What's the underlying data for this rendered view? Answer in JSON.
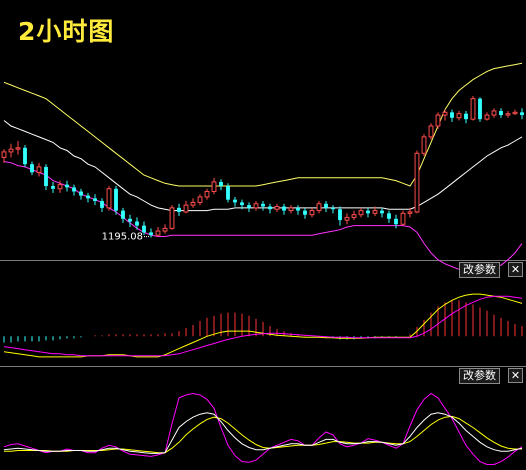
{
  "title": "2小时图",
  "chart_data": {
    "type": "candlestick",
    "colors": {
      "background": "#000000",
      "up": "#ff4d4d",
      "down": "#33ffff",
      "boll_mid": "#ffffff",
      "boll_upper": "#ffff66",
      "boll_lower": "#ff33ff",
      "k_line": "#ffffff",
      "d_line": "#ffff00",
      "j_line": "#ff00ff",
      "macd_pos": "#ff3333",
      "macd_neg": "#33ffff"
    },
    "price_axis": {
      "min": 1188,
      "max": 1262
    },
    "annotations": [
      {
        "label": "1195.08",
        "index": 21,
        "value": 1195.08
      }
    ],
    "candles": [
      [
        1224.5,
        1226.5,
        1222.5,
        1227.5
      ],
      [
        1226.5,
        1227.5,
        1224.5,
        1229.5
      ],
      [
        1227.5,
        1228.0,
        1225.5,
        1230.5
      ],
      [
        1228.0,
        1222.0,
        1221.0,
        1229.0
      ],
      [
        1222.0,
        1219.0,
        1218.0,
        1223.0
      ],
      [
        1219.0,
        1221.0,
        1217.5,
        1222.5
      ],
      [
        1221.0,
        1214.0,
        1212.5,
        1222.0
      ],
      [
        1214.0,
        1213.0,
        1211.5,
        1215.5
      ],
      [
        1213.0,
        1214.5,
        1211.5,
        1216.0
      ],
      [
        1214.5,
        1213.5,
        1212.0,
        1216.0
      ],
      [
        1213.5,
        1212.0,
        1210.5,
        1214.5
      ],
      [
        1212.0,
        1210.5,
        1209.0,
        1213.0
      ],
      [
        1210.5,
        1209.5,
        1208.0,
        1211.5
      ],
      [
        1209.5,
        1208.5,
        1207.0,
        1211.0
      ],
      [
        1208.5,
        1206.0,
        1204.5,
        1209.5
      ],
      [
        1206.0,
        1213.0,
        1205.0,
        1214.0
      ],
      [
        1213.0,
        1205.0,
        1203.5,
        1214.0
      ],
      [
        1205.0,
        1202.0,
        1200.5,
        1206.0
      ],
      [
        1202.0,
        1201.0,
        1199.0,
        1203.5
      ],
      [
        1201.0,
        1199.5,
        1198.0,
        1202.5
      ],
      [
        1199.5,
        1197.0,
        1196.0,
        1201.0
      ],
      [
        1197.0,
        1196.0,
        1195.08,
        1198.5
      ],
      [
        1196.0,
        1197.5,
        1195.5,
        1199.0
      ],
      [
        1197.5,
        1198.5,
        1196.5,
        1200.0
      ],
      [
        1198.5,
        1206.0,
        1198.0,
        1207.0
      ],
      [
        1206.0,
        1204.5,
        1203.0,
        1207.5
      ],
      [
        1204.5,
        1207.0,
        1204.0,
        1208.5
      ],
      [
        1207.0,
        1208.0,
        1206.0,
        1209.5
      ],
      [
        1208.0,
        1210.0,
        1207.0,
        1211.0
      ],
      [
        1210.0,
        1212.0,
        1209.0,
        1213.0
      ],
      [
        1212.0,
        1215.5,
        1211.0,
        1217.0
      ],
      [
        1215.5,
        1214.0,
        1212.5,
        1216.5
      ],
      [
        1214.0,
        1209.0,
        1208.0,
        1215.0
      ],
      [
        1209.0,
        1208.0,
        1206.5,
        1210.0
      ],
      [
        1208.0,
        1207.0,
        1205.5,
        1209.0
      ],
      [
        1207.0,
        1206.0,
        1204.5,
        1208.0
      ],
      [
        1206.0,
        1207.5,
        1205.0,
        1208.5
      ],
      [
        1207.5,
        1206.5,
        1205.0,
        1208.5
      ],
      [
        1206.5,
        1205.5,
        1204.0,
        1207.5
      ],
      [
        1205.5,
        1206.5,
        1204.5,
        1207.5
      ],
      [
        1206.5,
        1205.0,
        1203.5,
        1207.5
      ],
      [
        1205.0,
        1206.0,
        1204.0,
        1207.0
      ],
      [
        1206.0,
        1205.0,
        1203.5,
        1207.0
      ],
      [
        1205.0,
        1203.5,
        1202.0,
        1206.0
      ],
      [
        1203.5,
        1205.0,
        1202.5,
        1206.0
      ],
      [
        1205.0,
        1207.5,
        1204.0,
        1208.5
      ],
      [
        1207.5,
        1206.0,
        1204.5,
        1208.5
      ],
      [
        1206.0,
        1205.5,
        1204.0,
        1207.0
      ],
      [
        1205.5,
        1201.5,
        1199.5,
        1206.5
      ],
      [
        1201.5,
        1202.5,
        1200.0,
        1204.0
      ],
      [
        1202.5,
        1203.5,
        1201.5,
        1205.0
      ],
      [
        1203.5,
        1205.0,
        1202.5,
        1206.0
      ],
      [
        1205.0,
        1204.0,
        1202.5,
        1206.0
      ],
      [
        1204.0,
        1205.0,
        1203.0,
        1206.5
      ],
      [
        1205.0,
        1204.0,
        1202.5,
        1206.0
      ],
      [
        1204.0,
        1202.0,
        1200.5,
        1205.0
      ],
      [
        1202.0,
        1200.0,
        1198.5,
        1203.5
      ],
      [
        1200.0,
        1204.0,
        1199.5,
        1205.0
      ],
      [
        1204.0,
        1204.5,
        1202.5,
        1206.0
      ],
      [
        1204.5,
        1226.0,
        1204.0,
        1227.0
      ],
      [
        1226.0,
        1232.0,
        1225.0,
        1233.0
      ],
      [
        1232.0,
        1236.0,
        1231.0,
        1237.0
      ],
      [
        1236.0,
        1240.0,
        1235.0,
        1241.0
      ],
      [
        1240.0,
        1241.0,
        1238.0,
        1242.0
      ],
      [
        1241.0,
        1239.0,
        1237.5,
        1242.0
      ],
      [
        1239.0,
        1240.5,
        1238.0,
        1241.5
      ],
      [
        1240.5,
        1238.5,
        1237.0,
        1241.5
      ],
      [
        1238.5,
        1246.0,
        1238.0,
        1247.0
      ],
      [
        1246.0,
        1238.5,
        1237.5,
        1246.5
      ],
      [
        1238.5,
        1240.0,
        1238.0,
        1241.0
      ],
      [
        1240.0,
        1241.5,
        1239.0,
        1242.5
      ],
      [
        1241.5,
        1240.0,
        1239.0,
        1242.5
      ],
      [
        1240.0,
        1240.5,
        1239.0,
        1241.5
      ],
      [
        1240.5,
        1241.0,
        1240.0,
        1242.0
      ],
      [
        1241.0,
        1240.0,
        1238.5,
        1242.5
      ]
    ],
    "boll": {
      "upper": [
        1252,
        1251,
        1250,
        1249,
        1248,
        1247,
        1246,
        1244,
        1242,
        1240,
        1238,
        1236,
        1234,
        1232,
        1230,
        1228,
        1226,
        1224,
        1222,
        1220,
        1218,
        1217,
        1216,
        1215,
        1214.5,
        1214,
        1214,
        1214,
        1214,
        1214,
        1214,
        1214,
        1214,
        1214,
        1214,
        1214,
        1214,
        1214.5,
        1215,
        1215.5,
        1216,
        1216.5,
        1217,
        1217,
        1217,
        1217,
        1217,
        1217,
        1217,
        1217,
        1217,
        1217,
        1217,
        1217,
        1217,
        1216.5,
        1216,
        1215,
        1214,
        1218,
        1224,
        1230,
        1236,
        1242,
        1246,
        1249,
        1251,
        1253,
        1254.5,
        1256,
        1257,
        1257.5,
        1258,
        1258.5,
        1259
      ],
      "mid": [
        1238,
        1236,
        1235,
        1234,
        1233,
        1232,
        1231,
        1230,
        1228,
        1227,
        1225,
        1224,
        1222,
        1221,
        1219,
        1217,
        1215,
        1213,
        1211,
        1210,
        1208.5,
        1207,
        1206,
        1205.5,
        1205,
        1205,
        1205,
        1205,
        1205,
        1205,
        1205.5,
        1205.5,
        1205.5,
        1206,
        1206,
        1206,
        1206,
        1206,
        1206,
        1206,
        1206,
        1206,
        1206,
        1206,
        1206,
        1206,
        1206,
        1206,
        1206,
        1206,
        1206,
        1206,
        1206,
        1206,
        1206,
        1205.5,
        1205.5,
        1205.5,
        1205.5,
        1206.5,
        1208,
        1209.5,
        1211,
        1213,
        1215,
        1217,
        1219,
        1221,
        1223,
        1225,
        1226.5,
        1228,
        1229,
        1230.5,
        1232
      ],
      "lower": [
        1223,
        1222.5,
        1221.5,
        1221,
        1220,
        1219,
        1218,
        1216,
        1215,
        1214,
        1213,
        1211,
        1210,
        1209,
        1208,
        1206,
        1204.5,
        1202.5,
        1200.5,
        1198.5,
        1197,
        1196,
        1195.5,
        1195.5,
        1196,
        1196,
        1196,
        1196,
        1196,
        1196,
        1196,
        1196,
        1196,
        1196,
        1196,
        1196,
        1196,
        1196,
        1196,
        1196,
        1196,
        1196,
        1196,
        1196,
        1196,
        1196.5,
        1197,
        1197.5,
        1198,
        1199,
        1199.5,
        1199.5,
        1199.5,
        1199.5,
        1199.5,
        1199.5,
        1199.5,
        1199.5,
        1199,
        1197,
        1193,
        1189.5,
        1187,
        1185.5,
        1184.5,
        1183.5,
        1183,
        1183,
        1183,
        1183.5,
        1184,
        1185,
        1187,
        1189.5,
        1193
      ]
    },
    "macd": {
      "range": [
        -2.5,
        4.5
      ],
      "hist": [
        -0.6,
        -0.6,
        -0.5,
        -0.5,
        -0.5,
        -0.5,
        -0.4,
        -0.4,
        -0.3,
        -0.2,
        -0.2,
        -0.1,
        0,
        0.1,
        0.1,
        0.2,
        0.2,
        0.2,
        0.2,
        0.2,
        0.2,
        0.2,
        0.2,
        0.3,
        0.3,
        0.5,
        0.8,
        1.1,
        1.5,
        1.8,
        2.0,
        2.2,
        2.3,
        2.3,
        2.2,
        2.0,
        1.7,
        1.4,
        1.0,
        0.7,
        0.5,
        0.3,
        0.2,
        0.1,
        0.0,
        -0.1,
        -0.1,
        -0.2,
        -0.3,
        -0.3,
        -0.3,
        -0.2,
        -0.2,
        -0.2,
        -0.1,
        -0.1,
        -0.1,
        0,
        0.2,
        0.9,
        1.6,
        2.3,
        2.9,
        3.3,
        3.5,
        3.5,
        3.3,
        3.1,
        2.8,
        2.5,
        2.1,
        1.8,
        1.5,
        1.2,
        1.0
      ],
      "dif": [
        -1.5,
        -1.6,
        -1.7,
        -1.8,
        -1.9,
        -2.0,
        -2.0,
        -2.0,
        -2.0,
        -2.0,
        -2.0,
        -2.0,
        -1.9,
        -1.9,
        -1.9,
        -1.8,
        -1.8,
        -1.8,
        -1.9,
        -2.0,
        -2.0,
        -2.0,
        -2.0,
        -1.8,
        -1.5,
        -1.2,
        -0.9,
        -0.6,
        -0.3,
        0,
        0.2,
        0.4,
        0.5,
        0.5,
        0.5,
        0.5,
        0.4,
        0.3,
        0.2,
        0.1,
        0.05,
        0,
        -0.05,
        -0.1,
        -0.1,
        -0.1,
        -0.15,
        -0.15,
        -0.2,
        -0.2,
        -0.2,
        -0.2,
        -0.15,
        -0.1,
        -0.1,
        -0.1,
        -0.1,
        -0.1,
        -0.1,
        0.5,
        1.2,
        1.9,
        2.6,
        3.1,
        3.5,
        3.8,
        4.0,
        4.1,
        4.1,
        4.0,
        3.9,
        3.8,
        3.6,
        3.4,
        3.2
      ],
      "dea": [
        -1.0,
        -1.1,
        -1.2,
        -1.3,
        -1.4,
        -1.5,
        -1.6,
        -1.7,
        -1.7,
        -1.8,
        -1.8,
        -1.9,
        -1.9,
        -1.9,
        -1.9,
        -1.9,
        -1.9,
        -1.9,
        -1.9,
        -1.9,
        -1.9,
        -1.9,
        -1.9,
        -1.9,
        -1.8,
        -1.7,
        -1.5,
        -1.3,
        -1.1,
        -0.9,
        -0.7,
        -0.5,
        -0.3,
        -0.15,
        0,
        0.1,
        0.2,
        0.25,
        0.3,
        0.3,
        0.25,
        0.2,
        0.15,
        0.1,
        0.05,
        0,
        -0.05,
        -0.1,
        -0.1,
        -0.1,
        -0.15,
        -0.15,
        -0.15,
        -0.15,
        -0.15,
        -0.15,
        -0.15,
        -0.15,
        -0.15,
        0,
        0.3,
        0.7,
        1.2,
        1.7,
        2.2,
        2.6,
        3.0,
        3.3,
        3.6,
        3.8,
        3.9,
        3.9,
        3.9,
        3.8,
        3.7
      ]
    },
    "kdj": {
      "range": [
        0,
        100
      ],
      "k": [
        22,
        23,
        24,
        23,
        22,
        21,
        20,
        20,
        20,
        21,
        21,
        21,
        20,
        20,
        22,
        24,
        24,
        22,
        20,
        19,
        18,
        17,
        17,
        18,
        35,
        52,
        60,
        66,
        70,
        72,
        70,
        60,
        48,
        38,
        30,
        25,
        22,
        22,
        24,
        26,
        28,
        30,
        30,
        28,
        28,
        32,
        36,
        36,
        32,
        30,
        30,
        31,
        33,
        33,
        32,
        30,
        28,
        30,
        40,
        52,
        62,
        70,
        72,
        70,
        66,
        58,
        48,
        40,
        32,
        26,
        22,
        20,
        20,
        22,
        24
      ],
      "d": [
        20,
        20,
        21,
        21,
        21,
        21,
        21,
        20,
        20,
        20,
        21,
        21,
        21,
        21,
        21,
        22,
        23,
        23,
        22,
        21,
        20,
        19,
        18,
        18,
        24,
        32,
        42,
        50,
        57,
        63,
        66,
        64,
        58,
        50,
        42,
        35,
        29,
        25,
        24,
        25,
        26,
        27,
        28,
        28,
        28,
        29,
        31,
        33,
        33,
        32,
        31,
        31,
        31,
        32,
        32,
        31,
        30,
        30,
        33,
        40,
        48,
        56,
        62,
        66,
        67,
        64,
        58,
        52,
        45,
        38,
        32,
        27,
        24,
        23,
        23
      ],
      "j": [
        26,
        29,
        30,
        27,
        24,
        21,
        18,
        20,
        20,
        23,
        21,
        21,
        18,
        18,
        24,
        28,
        26,
        20,
        16,
        15,
        14,
        13,
        15,
        18,
        57,
        92,
        96,
        98,
        96,
        90,
        78,
        52,
        28,
        14,
        6,
        5,
        8,
        16,
        24,
        28,
        32,
        36,
        34,
        28,
        28,
        38,
        46,
        42,
        30,
        26,
        28,
        31,
        37,
        35,
        32,
        28,
        24,
        30,
        54,
        76,
        90,
        98,
        92,
        78,
        64,
        46,
        28,
        16,
        6,
        2,
        2,
        6,
        12,
        20,
        26
      ]
    }
  },
  "buttons": {
    "params_label": "改参数",
    "close_label": "✕"
  }
}
